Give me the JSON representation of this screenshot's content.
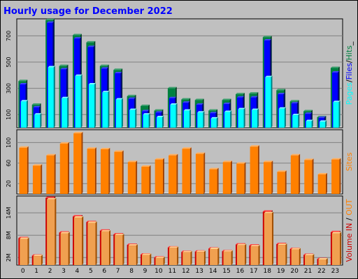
{
  "chart_data": {
    "type": "bar",
    "title": "Hourly usage for December 2022",
    "categories": [
      "0",
      "1",
      "2",
      "3",
      "4",
      "5",
      "6",
      "7",
      "8",
      "9",
      "10",
      "11",
      "12",
      "13",
      "14",
      "15",
      "16",
      "17",
      "18",
      "19",
      "20",
      "21",
      "22",
      "23"
    ],
    "colors": {
      "pages": "#00ffff",
      "files": "#0000ff",
      "hits": "#008040",
      "sites": "#ff8000",
      "volume_in": "#cc0000",
      "volume_out": "#f0a050",
      "title": "#0000ff",
      "background": "#bebebe",
      "plot": "#c0c0c0"
    },
    "panels": [
      {
        "name": "Pages / Files / Hits",
        "label_parts": [
          {
            "text": "Pages",
            "color": "#00ffff"
          },
          {
            "text": "/",
            "color": "#000000"
          },
          {
            "text": "Files",
            "color": "#0000ff"
          },
          {
            "text": "/",
            "color": "#000000"
          },
          {
            "text": "Hits",
            "color": "#008040"
          },
          {
            "text": "_",
            "color": "#000000"
          }
        ],
        "ylim": [
          0,
          830
        ],
        "ticks": [
          {
            "v": 100,
            "t": "100"
          },
          {
            "v": 300,
            "t": "300"
          },
          {
            "v": 500,
            "t": "500"
          },
          {
            "v": 700,
            "t": "700"
          }
        ],
        "grid": true,
        "series": [
          {
            "name": "Hits",
            "values": [
              355,
              175,
              820,
              470,
              705,
              650,
              470,
              440,
              240,
              165,
              130,
              300,
              215,
              210,
              130,
              210,
              255,
              260,
              690,
              285,
              200,
              125,
              80,
              455
            ]
          },
          {
            "name": "Files",
            "values": [
              330,
              155,
              800,
              445,
              680,
              615,
              450,
              415,
              220,
              125,
              115,
              225,
              190,
              175,
              110,
              180,
              230,
              230,
              665,
              255,
              185,
              105,
              75,
              420
            ]
          },
          {
            "name": "Pages",
            "values": [
              200,
              100,
              460,
              225,
              395,
              330,
              270,
              215,
              135,
              100,
              80,
              175,
              130,
              115,
              70,
              120,
              140,
              135,
              385,
              145,
              95,
              50,
              45,
              195
            ]
          }
        ]
      },
      {
        "name": "Sites",
        "label_parts": [
          {
            "text": "Sites",
            "color": "#ff8000"
          }
        ],
        "ylim": [
          0,
          125
        ],
        "ticks": [
          {
            "v": 20,
            "t": "20"
          },
          {
            "v": 60,
            "t": "60"
          },
          {
            "v": 100,
            "t": "100"
          }
        ],
        "grid": true,
        "series": [
          {
            "name": "Sites",
            "values": [
              90,
              55,
              75,
              98,
              118,
              88,
              87,
              82,
              62,
              53,
              67,
              75,
              88,
              78,
              48,
              62,
              59,
              92,
              62,
              43,
              75,
              66,
              38,
              67
            ]
          }
        ]
      },
      {
        "name": "Volume IN / OUT",
        "label_parts": [
          {
            "text": "Volume",
            "color": "#cc0000"
          },
          {
            "text": "  IN",
            "color": "#cc0000"
          },
          {
            "text": " / ",
            "color": "#000000"
          },
          {
            "text": "OUT",
            "color": "#ff8000"
          }
        ],
        "ylim": [
          0,
          18.5
        ],
        "ticks": [
          {
            "v": 2,
            "t": "2M"
          },
          {
            "v": 8,
            "t": "8M"
          },
          {
            "v": 14,
            "t": "14M"
          }
        ],
        "grid": true,
        "series": [
          {
            "name": "IN",
            "values": [
              7.2,
              2.5,
              18.0,
              8.7,
              13.0,
              11.5,
              9.2,
              8.2,
              5.4,
              2.8,
              2.0,
              4.7,
              3.5,
              3.6,
              4.4,
              3.7,
              5.5,
              5.2,
              14.3,
              5.6,
              4.3,
              2.7,
              1.6,
              8.8
            ]
          },
          {
            "name": "OUT",
            "values": [
              7.0,
              2.4,
              17.6,
              8.5,
              12.7,
              11.3,
              9.0,
              8.0,
              5.2,
              2.7,
              1.9,
              4.6,
              3.4,
              3.5,
              4.3,
              3.6,
              5.3,
              5.0,
              13.9,
              5.4,
              4.2,
              2.6,
              1.5,
              8.5
            ]
          }
        ]
      }
    ]
  }
}
